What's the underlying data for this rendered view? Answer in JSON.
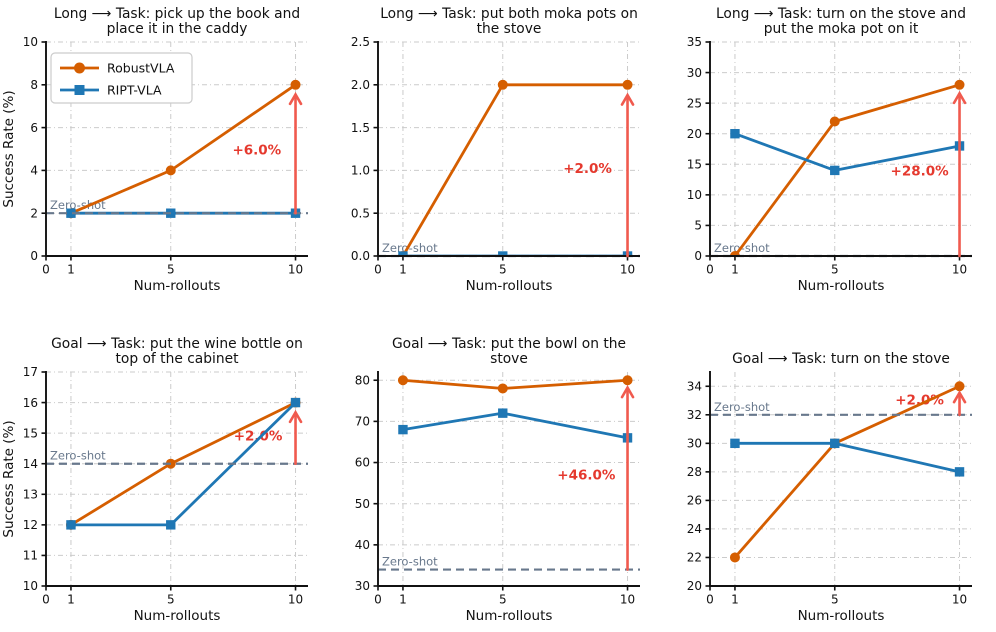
{
  "figure": {
    "zero_shot_label": "Zero-shot",
    "legend": {
      "position": "top-left-of-first-subplot",
      "items": [
        {
          "label": "RobustVLA",
          "marker": "circle",
          "color_key": "robustvla"
        },
        {
          "label": "RIPT-VLA",
          "marker": "square",
          "color_key": "riptvla"
        }
      ]
    },
    "colors": {
      "robustvla": "#D55E00",
      "riptvla": "#1F77B4",
      "annotation_text": "#E5392E",
      "annotation_arrow": "#F05A4E",
      "zero_shot": "#68788C",
      "grid": "#CBCBCB",
      "axis": "#111111"
    }
  },
  "chart_data": [
    {
      "type": "line",
      "title_lines": [
        "Long ⟶ Task: pick up the book and",
        "place it in the caddy"
      ],
      "xlabel": "Num-rollouts",
      "ylabel": "Success Rate (%)",
      "show_legend": true,
      "x": [
        1,
        5,
        10
      ],
      "xlim": [
        0,
        10.5
      ],
      "xticks": [
        0,
        1,
        5,
        10
      ],
      "xtick_labels": [
        "0",
        "1",
        "5",
        "10"
      ],
      "ylim": [
        0,
        10
      ],
      "yticks": [
        0,
        2,
        4,
        6,
        8,
        10
      ],
      "ytick_labels": [
        "0",
        "2",
        "4",
        "6",
        "8",
        "10"
      ],
      "grid": true,
      "series": [
        {
          "name": "RobustVLA",
          "marker": "circle",
          "color_key": "robustvla",
          "values": [
            2,
            4,
            8
          ]
        },
        {
          "name": "RIPT-VLA",
          "marker": "square",
          "color_key": "riptvla",
          "values": [
            2,
            2,
            2
          ]
        }
      ],
      "zero_shot": 2,
      "annotation": {
        "text": "+6.0%",
        "label_x": 8.45,
        "label_y": 4.95,
        "arrow_x": 10,
        "arrow_from": 2,
        "arrow_to": 7.55
      }
    },
    {
      "type": "line",
      "title_lines": [
        "Long ⟶ Task: put both moka pots on",
        "the stove"
      ],
      "xlabel": "Num-rollouts",
      "ylabel": null,
      "show_legend": false,
      "x": [
        1,
        5,
        10
      ],
      "xlim": [
        0,
        10.5
      ],
      "xticks": [
        0,
        1,
        5,
        10
      ],
      "xtick_labels": [
        "0",
        "1",
        "5",
        "10"
      ],
      "ylim": [
        0,
        2.5
      ],
      "yticks": [
        0,
        0.5,
        1.0,
        1.5,
        2.0,
        2.5
      ],
      "ytick_labels": [
        "0.0",
        "0.5",
        "1.0",
        "1.5",
        "2.0",
        "2.5"
      ],
      "grid": true,
      "series": [
        {
          "name": "RobustVLA",
          "marker": "circle",
          "color_key": "robustvla",
          "values": [
            0,
            2,
            2
          ]
        },
        {
          "name": "RIPT-VLA",
          "marker": "square",
          "color_key": "riptvla",
          "values": [
            0,
            0,
            0
          ]
        }
      ],
      "zero_shot": 0,
      "annotation": {
        "text": "+2.0%",
        "label_x": 8.4,
        "label_y": 1.02,
        "arrow_x": 10,
        "arrow_from": 0,
        "arrow_to": 1.88
      }
    },
    {
      "type": "line",
      "title_lines": [
        "Long ⟶ Task: turn on the stove and",
        "put the moka pot on it"
      ],
      "xlabel": "Num-rollouts",
      "ylabel": null,
      "show_legend": false,
      "x": [
        1,
        5,
        10
      ],
      "xlim": [
        0,
        10.5
      ],
      "xticks": [
        0,
        1,
        5,
        10
      ],
      "xtick_labels": [
        "0",
        "1",
        "5",
        "10"
      ],
      "ylim": [
        0,
        35
      ],
      "yticks": [
        0,
        5,
        10,
        15,
        20,
        25,
        30,
        35
      ],
      "ytick_labels": [
        "0",
        "5",
        "10",
        "15",
        "20",
        "25",
        "30",
        "35"
      ],
      "grid": true,
      "series": [
        {
          "name": "RobustVLA",
          "marker": "circle",
          "color_key": "robustvla",
          "values": [
            0,
            22,
            28
          ]
        },
        {
          "name": "RIPT-VLA",
          "marker": "square",
          "color_key": "riptvla",
          "values": [
            20,
            14,
            18
          ]
        }
      ],
      "zero_shot": 0,
      "annotation": {
        "text": "+28.0%",
        "label_x": 8.4,
        "label_y": 13.9,
        "arrow_x": 10,
        "arrow_from": 0,
        "arrow_to": 26.6
      }
    },
    {
      "type": "line",
      "title_lines": [
        "Goal ⟶ Task: put the wine bottle on",
        "top of the cabinet"
      ],
      "xlabel": "Num-rollouts",
      "ylabel": "Success Rate (%)",
      "show_legend": false,
      "x": [
        1,
        5,
        10
      ],
      "xlim": [
        0,
        10.5
      ],
      "xticks": [
        0,
        1,
        5,
        10
      ],
      "xtick_labels": [
        "0",
        "1",
        "5",
        "10"
      ],
      "ylim": [
        10,
        17
      ],
      "yticks": [
        10,
        11,
        12,
        13,
        14,
        15,
        16,
        17
      ],
      "ytick_labels": [
        "10",
        "11",
        "12",
        "13",
        "14",
        "15",
        "16",
        "17"
      ],
      "grid": true,
      "series": [
        {
          "name": "RobustVLA",
          "marker": "circle",
          "color_key": "robustvla",
          "values": [
            12,
            14,
            16
          ]
        },
        {
          "name": "RIPT-VLA",
          "marker": "square",
          "color_key": "riptvla",
          "values": [
            12,
            12,
            16
          ]
        }
      ],
      "zero_shot": 14,
      "annotation": {
        "text": "+2.0%",
        "label_x": 8.5,
        "label_y": 14.9,
        "arrow_x": 10,
        "arrow_from": 14,
        "arrow_to": 15.68
      }
    },
    {
      "type": "line",
      "title_lines": [
        "Goal ⟶ Task: put the bowl on the",
        "stove"
      ],
      "xlabel": "Num-rollouts",
      "ylabel": null,
      "show_legend": false,
      "x": [
        1,
        5,
        10
      ],
      "xlim": [
        0,
        10.5
      ],
      "xticks": [
        0,
        1,
        5,
        10
      ],
      "xtick_labels": [
        "0",
        "1",
        "5",
        "10"
      ],
      "ylim": [
        30,
        82
      ],
      "yticks": [
        30,
        40,
        50,
        60,
        70,
        80
      ],
      "ytick_labels": [
        "30",
        "40",
        "50",
        "60",
        "70",
        "80"
      ],
      "grid": true,
      "series": [
        {
          "name": "RobustVLA",
          "marker": "circle",
          "color_key": "robustvla",
          "values": [
            80,
            78,
            80
          ]
        },
        {
          "name": "RIPT-VLA",
          "marker": "square",
          "color_key": "riptvla",
          "values": [
            68,
            72,
            66
          ]
        }
      ],
      "zero_shot": 34,
      "annotation": {
        "text": "+46.0%",
        "label_x": 8.35,
        "label_y": 57,
        "arrow_x": 10,
        "arrow_from": 34,
        "arrow_to": 78.2
      }
    },
    {
      "type": "line",
      "title_lines": [
        "Goal ⟶ Task: turn on the stove"
      ],
      "xlabel": "Num-rollouts",
      "ylabel": null,
      "show_legend": false,
      "x": [
        1,
        5,
        10
      ],
      "xlim": [
        0,
        10.5
      ],
      "xticks": [
        0,
        1,
        5,
        10
      ],
      "xtick_labels": [
        "0",
        "1",
        "5",
        "10"
      ],
      "ylim": [
        20,
        35
      ],
      "yticks": [
        20,
        22,
        24,
        26,
        28,
        30,
        32,
        34
      ],
      "ytick_labels": [
        "20",
        "22",
        "24",
        "26",
        "28",
        "30",
        "32",
        "34"
      ],
      "grid": true,
      "series": [
        {
          "name": "RobustVLA",
          "marker": "circle",
          "color_key": "robustvla",
          "values": [
            22,
            30,
            34
          ]
        },
        {
          "name": "RIPT-VLA",
          "marker": "square",
          "color_key": "riptvla",
          "values": [
            30,
            30,
            28
          ]
        }
      ],
      "zero_shot": 32,
      "annotation": {
        "text": "+2.0%",
        "label_x": 8.4,
        "label_y": 33.05,
        "arrow_x": 10,
        "arrow_from": 32,
        "arrow_to": 33.55
      }
    }
  ]
}
